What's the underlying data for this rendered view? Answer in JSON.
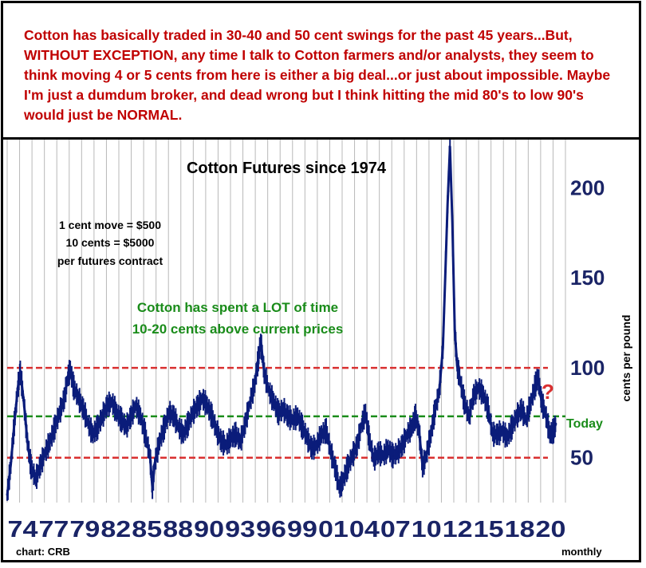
{
  "header": {
    "commentary": "Cotton has basically traded in 30-40 and 50 cent swings for the past 45 years...But, WITHOUT EXCEPTION, any time I talk to Cotton farmers and/or analysts, they seem to think moving 4 or 5 cents from here is either a big deal...or just about impossible. Maybe I'm just a dumdum broker, and dead wrong but I think hitting the mid 80's to low 90's would just be NORMAL."
  },
  "annotations": {
    "contract_line1": "1 cent move = $500",
    "contract_line2": "10 cents = $5000",
    "contract_line3": "per futures contract",
    "green_note_line1": "Cotton has spent a LOT of time",
    "green_note_line2": "10-20 cents above current prices",
    "question_mark": "?",
    "today_label": "Today",
    "source": "chart: CRB",
    "frequency": "monthly"
  },
  "colors": {
    "price_line": "#0b1c7a",
    "range_lines": "#d93030",
    "today_line": "#1a8c1a",
    "header_text": "#c00000",
    "axis_labels": "#1a2466",
    "grid": "#b8b8b8"
  },
  "chart_data": {
    "type": "line",
    "title": "Cotton Futures since 1974",
    "ylabel": "cents per pound",
    "xlabel": "",
    "ylim": [
      24,
      226
    ],
    "y_ticks": [
      50,
      100,
      150,
      200
    ],
    "x_tick_labels": [
      "74",
      "77",
      "79",
      "82",
      "85",
      "88",
      "90",
      "93",
      "96",
      "99",
      "01",
      "04",
      "07",
      "10",
      "12",
      "15",
      "18",
      "20"
    ],
    "x_tick_years": [
      1974,
      1977,
      1979,
      1982,
      1985,
      1988,
      1990,
      1993,
      1996,
      1999,
      2001,
      2004,
      2007,
      2010,
      2012,
      2015,
      2018,
      2020
    ],
    "grid": true,
    "reference_lines": [
      {
        "label": "",
        "value": 99,
        "color": "#d93030",
        "style": "dashed"
      },
      {
        "label": "",
        "value": 49,
        "color": "#d93030",
        "style": "dashed"
      },
      {
        "label": "Today",
        "value": 72,
        "color": "#1a8c1a",
        "style": "dashed"
      }
    ],
    "series": [
      {
        "name": "",
        "points": [
          [
            1974.0,
            28
          ],
          [
            1974.3,
            45
          ],
          [
            1974.6,
            68
          ],
          [
            1974.9,
            88
          ],
          [
            1975.1,
            97
          ],
          [
            1975.4,
            80
          ],
          [
            1975.7,
            58
          ],
          [
            1976.0,
            44
          ],
          [
            1976.4,
            37
          ],
          [
            1976.8,
            45
          ],
          [
            1977.2,
            52
          ],
          [
            1977.6,
            58
          ],
          [
            1978.0,
            66
          ],
          [
            1978.4,
            74
          ],
          [
            1978.8,
            82
          ],
          [
            1979.1,
            94
          ],
          [
            1979.3,
            98
          ],
          [
            1979.6,
            88
          ],
          [
            1980.0,
            82
          ],
          [
            1980.4,
            76
          ],
          [
            1980.8,
            68
          ],
          [
            1981.2,
            62
          ],
          [
            1981.6,
            66
          ],
          [
            1982.0,
            72
          ],
          [
            1982.4,
            78
          ],
          [
            1982.8,
            80
          ],
          [
            1983.2,
            74
          ],
          [
            1983.6,
            70
          ],
          [
            1984.0,
            66
          ],
          [
            1984.4,
            72
          ],
          [
            1984.8,
            78
          ],
          [
            1985.2,
            72
          ],
          [
            1985.6,
            62
          ],
          [
            1986.0,
            50
          ],
          [
            1986.2,
            32
          ],
          [
            1986.4,
            46
          ],
          [
            1986.8,
            58
          ],
          [
            1987.2,
            66
          ],
          [
            1987.6,
            74
          ],
          [
            1988.0,
            72
          ],
          [
            1988.4,
            66
          ],
          [
            1988.8,
            62
          ],
          [
            1989.2,
            68
          ],
          [
            1989.6,
            74
          ],
          [
            1990.0,
            78
          ],
          [
            1990.4,
            82
          ],
          [
            1990.8,
            78
          ],
          [
            1991.2,
            72
          ],
          [
            1991.6,
            64
          ],
          [
            1992.0,
            58
          ],
          [
            1992.4,
            56
          ],
          [
            1992.8,
            60
          ],
          [
            1993.2,
            62
          ],
          [
            1993.6,
            58
          ],
          [
            1994.0,
            68
          ],
          [
            1994.4,
            80
          ],
          [
            1994.8,
            90
          ],
          [
            1995.1,
            104
          ],
          [
            1995.3,
            114
          ],
          [
            1995.6,
            96
          ],
          [
            1996.0,
            86
          ],
          [
            1996.4,
            80
          ],
          [
            1996.8,
            74
          ],
          [
            1997.2,
            76
          ],
          [
            1997.6,
            72
          ],
          [
            1998.0,
            70
          ],
          [
            1998.4,
            72
          ],
          [
            1998.8,
            66
          ],
          [
            1999.2,
            60
          ],
          [
            1999.6,
            54
          ],
          [
            2000.0,
            56
          ],
          [
            2000.4,
            62
          ],
          [
            2000.8,
            64
          ],
          [
            2001.2,
            52
          ],
          [
            2001.6,
            42
          ],
          [
            2001.9,
            32
          ],
          [
            2002.2,
            36
          ],
          [
            2002.6,
            44
          ],
          [
            2003.0,
            50
          ],
          [
            2003.4,
            56
          ],
          [
            2003.8,
            68
          ],
          [
            2004.1,
            74
          ],
          [
            2004.4,
            60
          ],
          [
            2004.8,
            48
          ],
          [
            2005.2,
            52
          ],
          [
            2005.6,
            50
          ],
          [
            2006.0,
            54
          ],
          [
            2006.4,
            50
          ],
          [
            2006.8,
            52
          ],
          [
            2007.2,
            56
          ],
          [
            2007.6,
            62
          ],
          [
            2008.0,
            66
          ],
          [
            2008.3,
            72
          ],
          [
            2008.6,
            64
          ],
          [
            2008.9,
            44
          ],
          [
            2009.2,
            50
          ],
          [
            2009.6,
            62
          ],
          [
            2009.9,
            74
          ],
          [
            2010.3,
            86
          ],
          [
            2010.6,
            110
          ],
          [
            2010.8,
            150
          ],
          [
            2011.0,
            190
          ],
          [
            2011.2,
            222
          ],
          [
            2011.4,
            180
          ],
          [
            2011.6,
            120
          ],
          [
            2011.8,
            100
          ],
          [
            2012.0,
            94
          ],
          [
            2012.4,
            80
          ],
          [
            2012.8,
            72
          ],
          [
            2013.2,
            84
          ],
          [
            2013.6,
            88
          ],
          [
            2014.0,
            84
          ],
          [
            2014.4,
            76
          ],
          [
            2014.8,
            62
          ],
          [
            2015.2,
            62
          ],
          [
            2015.6,
            64
          ],
          [
            2016.0,
            60
          ],
          [
            2016.4,
            66
          ],
          [
            2016.8,
            72
          ],
          [
            2017.2,
            76
          ],
          [
            2017.6,
            70
          ],
          [
            2018.0,
            80
          ],
          [
            2018.4,
            90
          ],
          [
            2018.6,
            94
          ],
          [
            2018.9,
            80
          ],
          [
            2019.2,
            74
          ],
          [
            2019.6,
            62
          ],
          [
            2019.9,
            64
          ],
          [
            2020.1,
            68
          ]
        ]
      }
    ]
  }
}
